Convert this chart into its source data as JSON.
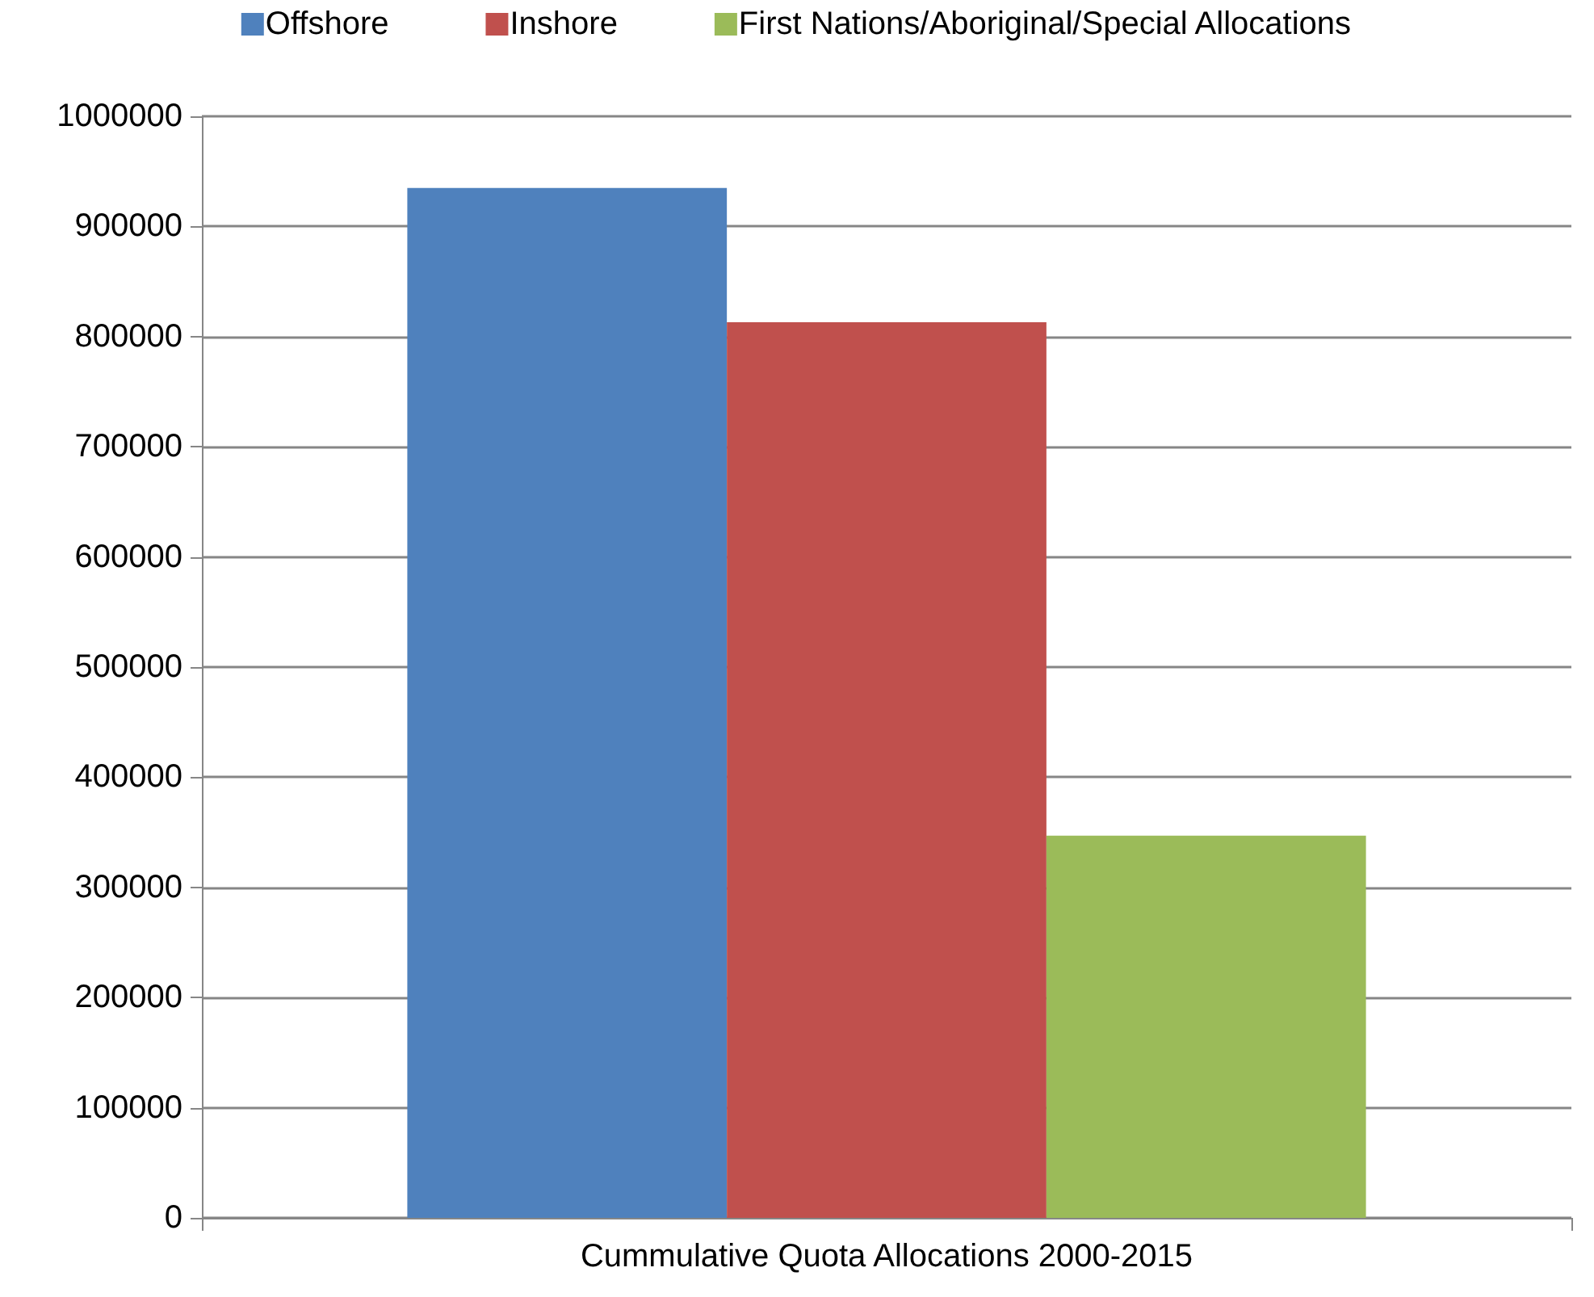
{
  "chart_data": {
    "type": "bar",
    "categories": [
      "Cummulative Quota Allocations 2000-2015"
    ],
    "series": [
      {
        "name": "Offshore",
        "color": "#4f81bd",
        "values": [
          935000
        ]
      },
      {
        "name": "Inshore",
        "color": "#c0504d",
        "values": [
          813000
        ]
      },
      {
        "name": "First Nations/Aboriginal/Special Allocations",
        "color": "#9bbb59",
        "values": [
          347000
        ]
      }
    ],
    "ylim": [
      0,
      1000000
    ],
    "yticks": [
      0,
      100000,
      200000,
      300000,
      400000,
      500000,
      600000,
      700000,
      800000,
      900000,
      1000000
    ],
    "grid": "y",
    "legend": "top"
  }
}
